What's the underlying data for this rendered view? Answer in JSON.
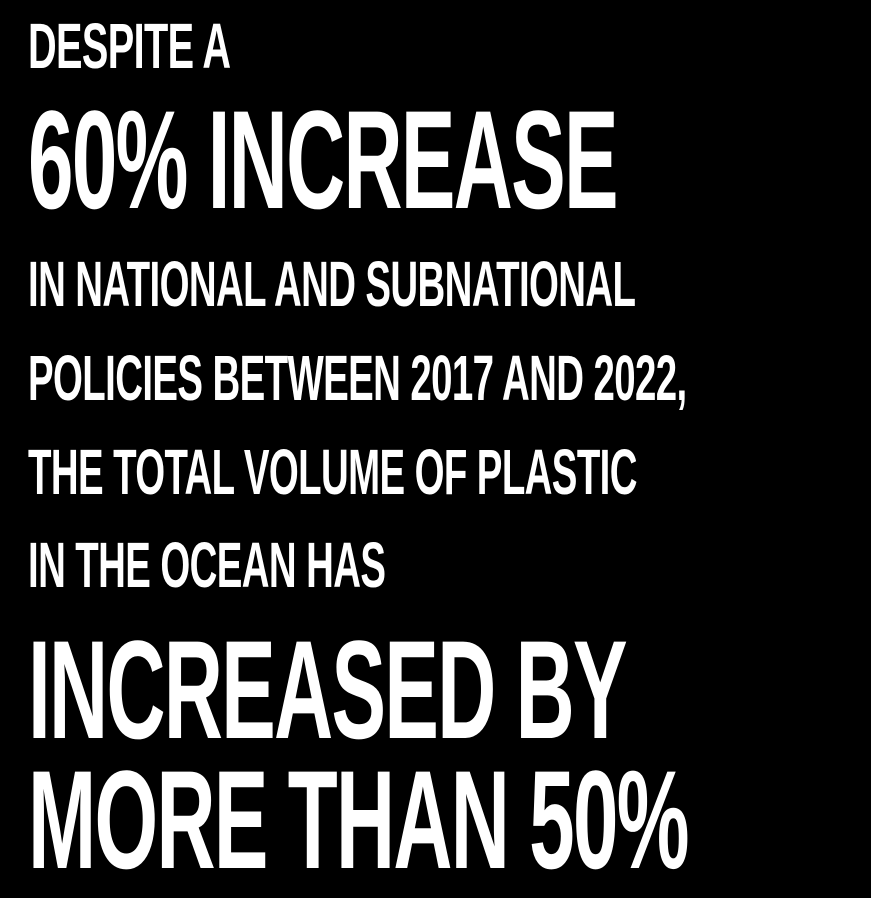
{
  "background_color": "#000000",
  "text_color": "#ffffff",
  "statement": {
    "line1": "DESPITE A",
    "line2": "60% INCREASE",
    "line3": "IN NATIONAL AND SUBNATIONAL",
    "line4": "POLICIES BETWEEN 2017 AND 2022,",
    "line5": "THE TOTAL VOLUME OF PLASTIC",
    "line6": "IN THE OCEAN HAS",
    "line7": "INCREASED BY",
    "line8": "MORE THAN 50%"
  }
}
